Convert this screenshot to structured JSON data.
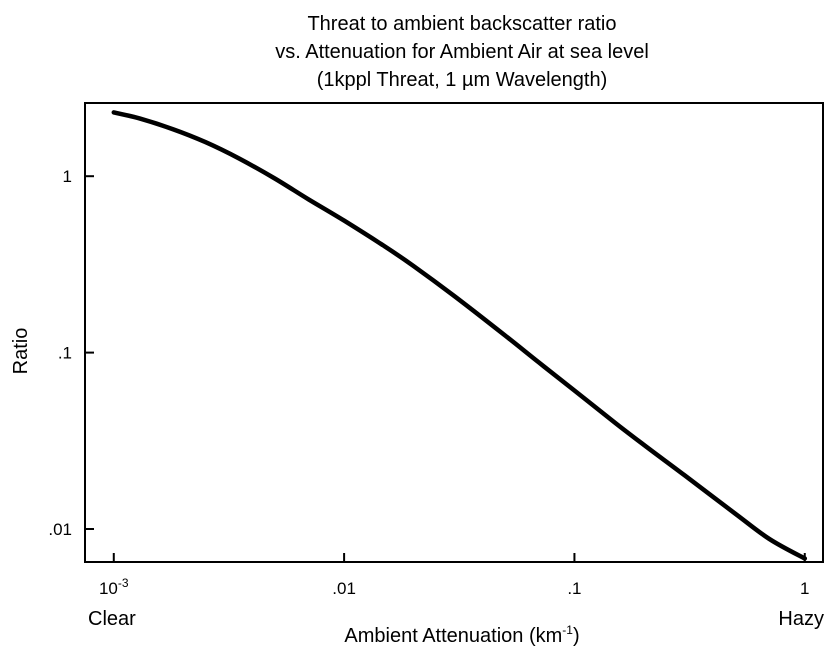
{
  "chart_data": {
    "type": "line",
    "title": [
      "Threat to ambient backscatter ratio",
      "vs. Attenuation for Ambient Air at sea level"
    ],
    "subtitle": {
      "pre": "(1kppl Threat, 1 ",
      "mu": "µ",
      "post": "m Wavelength)"
    },
    "xlabel": {
      "pre": "Ambient Attenuation (km",
      "sup": "-1",
      "post": ")"
    },
    "ylabel": "Ratio",
    "x_scale": "log",
    "y_scale": "log",
    "xlim": [
      0.00075,
      1.2
    ],
    "ylim": [
      0.0065,
      2.6
    ],
    "x_ticks": [
      {
        "value": 0.001,
        "base": "10",
        "exp": "-3",
        "label": ""
      },
      {
        "value": 0.01,
        "label": ".01"
      },
      {
        "value": 0.1,
        "label": ".1"
      },
      {
        "value": 1,
        "label": "1"
      }
    ],
    "y_ticks": [
      {
        "value": 1,
        "label": "1"
      },
      {
        "value": 0.1,
        "label": ".1"
      },
      {
        "value": 0.01,
        "label": ".01"
      }
    ],
    "x_end_labels": {
      "left": "Clear",
      "right": "Hazy"
    },
    "grid": false,
    "legend": "none",
    "series": [
      {
        "color": "#000000",
        "points": [
          [
            0.001,
            2.3
          ],
          [
            0.0013,
            2.12
          ],
          [
            0.0018,
            1.85
          ],
          [
            0.0025,
            1.56
          ],
          [
            0.0035,
            1.26
          ],
          [
            0.005,
            0.97
          ],
          [
            0.007,
            0.74
          ],
          [
            0.01,
            0.56
          ],
          [
            0.015,
            0.4
          ],
          [
            0.02,
            0.31
          ],
          [
            0.03,
            0.21
          ],
          [
            0.05,
            0.125
          ],
          [
            0.07,
            0.088
          ],
          [
            0.1,
            0.061
          ],
          [
            0.15,
            0.04
          ],
          [
            0.2,
            0.03
          ],
          [
            0.3,
            0.0202
          ],
          [
            0.5,
            0.0122
          ],
          [
            0.7,
            0.0088
          ],
          [
            1.0,
            0.0068
          ]
        ]
      }
    ]
  }
}
